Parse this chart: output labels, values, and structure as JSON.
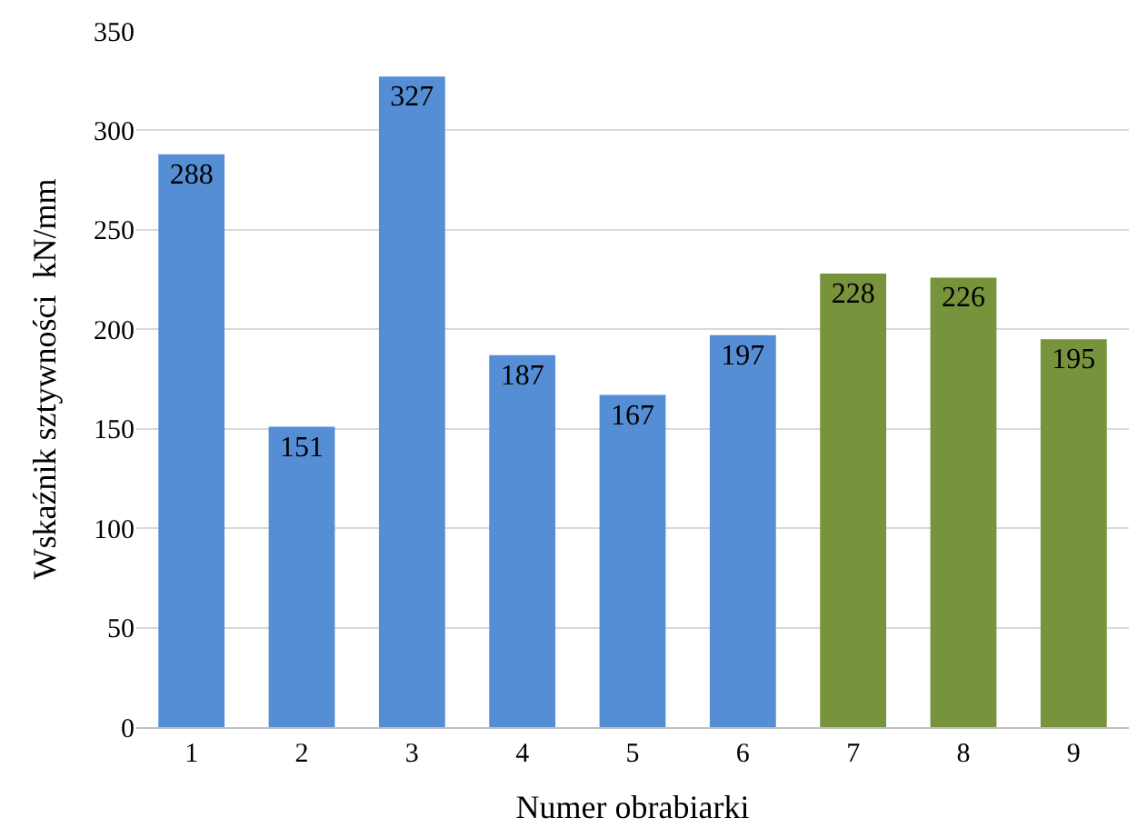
{
  "chart_data": {
    "type": "bar",
    "xlabel": "Numer obrabiarki",
    "ylabel": "Wskaźnik sztywności  kN/mm",
    "categories": [
      "1",
      "2",
      "3",
      "4",
      "5",
      "6",
      "7",
      "8",
      "9"
    ],
    "values": [
      288,
      151,
      327,
      187,
      167,
      197,
      228,
      226,
      195
    ],
    "colors": [
      "#558ed5",
      "#558ed5",
      "#558ed5",
      "#558ed5",
      "#558ed5",
      "#558ed5",
      "#77933c",
      "#77933c",
      "#77933c"
    ],
    "ylim": [
      0,
      350
    ],
    "yticks": [
      0,
      50,
      100,
      150,
      200,
      250,
      300,
      350
    ],
    "grid": "y",
    "data_labels": true
  }
}
